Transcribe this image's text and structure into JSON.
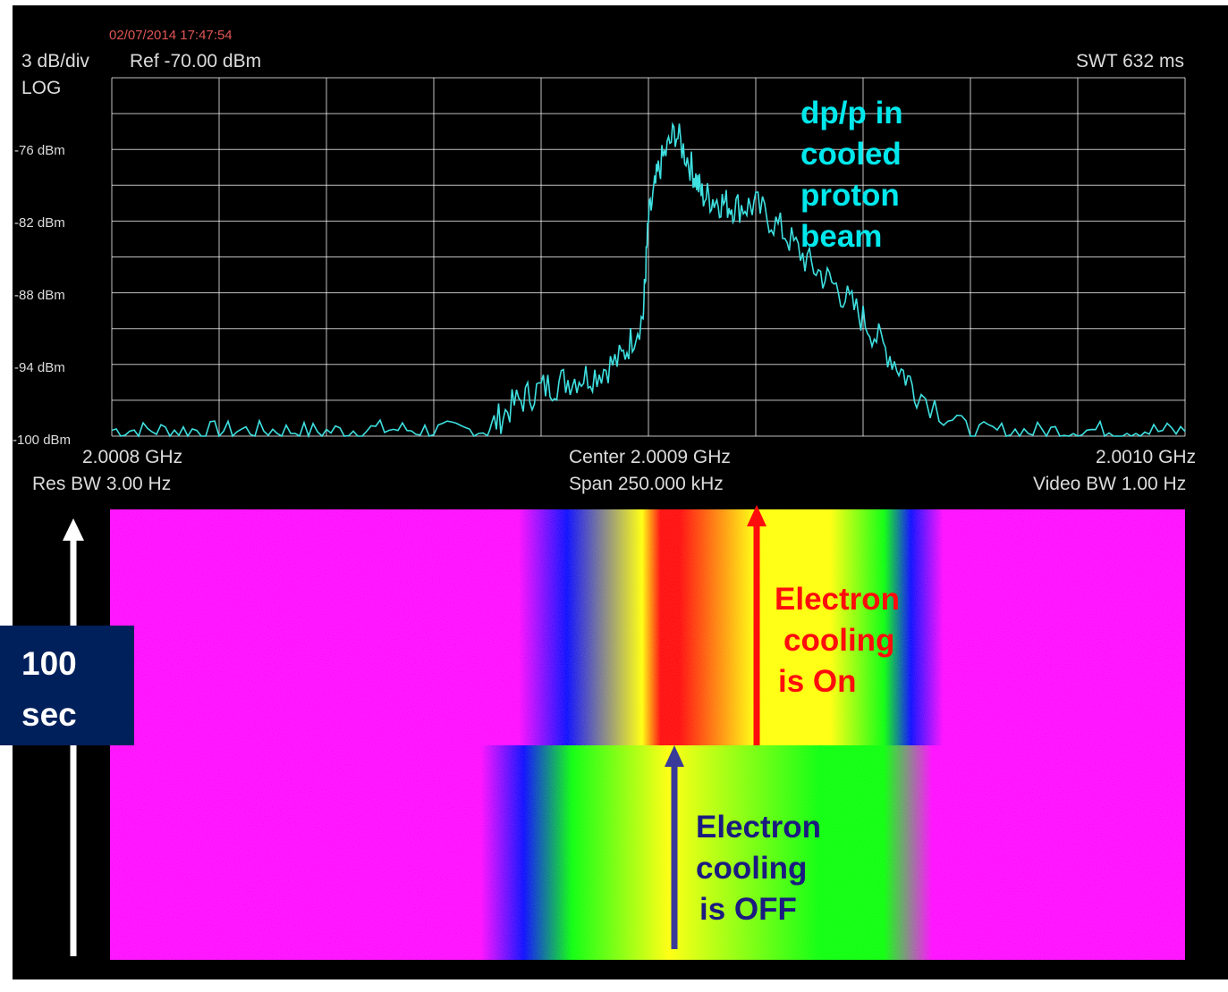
{
  "analyzer": {
    "timestamp": "02/07/2014 17:47:54",
    "scale": "3 dB/div",
    "ref_level": "Ref -70.00  dBm",
    "mode": "LOG",
    "sweep_time": "SWT 632 ms",
    "start_freq": "2.0008 GHz",
    "center_freq": "Center 2.0009 GHz",
    "stop_freq": "2.0010 GHz",
    "res_bw": "Res BW 3.00  Hz",
    "span": "Span 250.000 kHz",
    "video_bw": "Video BW 1.00  Hz",
    "trace_color": "#3fe0e0",
    "grid_color": "#ffffff"
  },
  "annotations": {
    "dp_over_p": [
      "dp/p in",
      "cooled",
      "proton",
      "beam"
    ],
    "cooling_on": [
      "Electron",
      "cooling",
      "is On"
    ],
    "cooling_off": [
      "Electron",
      "cooling",
      "is OFF"
    ],
    "time_label": [
      "100",
      "sec"
    ],
    "colors": {
      "dp_over_p": "#00e8ec",
      "cooling_on": "#ff0c0c",
      "cooling_off": "#1a1a80",
      "time_box": "#00205b"
    }
  },
  "waterfall": {
    "palette": {
      "background": "#ff00ff",
      "low": "#0000ff",
      "mid_low": "#00ff00",
      "mid": "#ffff00",
      "high": "#ff0000"
    }
  },
  "chart_data": {
    "type": "line",
    "title": "",
    "xlabel": "",
    "ylabel": "",
    "x_unit": "GHz",
    "xlim": [
      2.0008,
      2.001
    ],
    "ylim": [
      -100,
      -70
    ],
    "grid": true,
    "y_ticks": [
      {
        "value": -76,
        "label": "-76  dBm"
      },
      {
        "value": -82,
        "label": "-82  dBm"
      },
      {
        "value": -88,
        "label": "-88  dBm"
      },
      {
        "value": -94,
        "label": "-94  dBm"
      },
      {
        "value": -100,
        "label": "-100  dBm"
      }
    ],
    "series": [
      {
        "x": [
          2.0008,
          2.00081,
          2.00082,
          2.00083,
          2.00084,
          2.00085,
          2.00086,
          2.00087,
          2.000875,
          2.00088,
          2.000885,
          2.00089,
          2.000895,
          2.000899,
          2.0009,
          2.000902,
          2.000905,
          2.000908,
          2.00091,
          2.000913,
          2.000916,
          2.00092,
          2.000925,
          2.00093,
          2.000935,
          2.00094,
          2.000945,
          2.00095,
          2.00096,
          2.00097,
          2.00098,
          2.00099,
          2.001
        ],
        "y": [
          -99.5,
          -99.5,
          -99.5,
          -99.5,
          -99.6,
          -99.4,
          -99.5,
          -99.5,
          -97.3,
          -96.0,
          -95.3,
          -94.8,
          -93.5,
          -90.0,
          -82.0,
          -77.5,
          -74.5,
          -77.5,
          -79.8,
          -80.3,
          -80.8,
          -80.7,
          -82.8,
          -85.6,
          -87.5,
          -90.2,
          -93.2,
          -96.2,
          -99.6,
          -99.6,
          -99.5,
          -99.5,
          -99.6
        ]
      }
    ]
  }
}
